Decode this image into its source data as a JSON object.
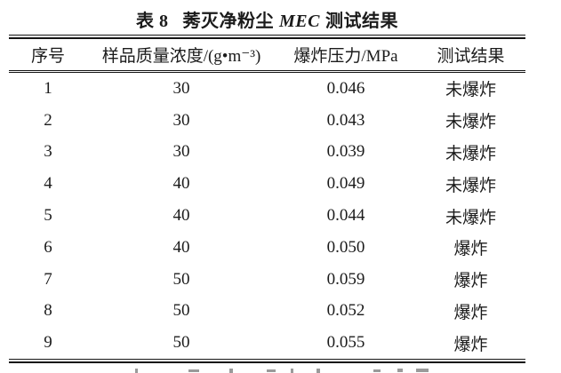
{
  "page": {
    "background": "#ffffff",
    "text_color": "#1b1b1b",
    "rule_color": "#141414"
  },
  "title": {
    "table_label": "表 8",
    "subject": "莠灭净粉尘",
    "abbrev": "MEC",
    "tail": "测试结果"
  },
  "table": {
    "columns": [
      "序号",
      "样品质量浓度/(g•m⁻³)",
      "爆炸压力/MPa",
      "测试结果"
    ],
    "rows": [
      [
        "1",
        "30",
        "0.046",
        "未爆炸"
      ],
      [
        "2",
        "30",
        "0.043",
        "未爆炸"
      ],
      [
        "3",
        "30",
        "0.039",
        "未爆炸"
      ],
      [
        "4",
        "40",
        "0.049",
        "未爆炸"
      ],
      [
        "5",
        "40",
        "0.044",
        "未爆炸"
      ],
      [
        "6",
        "40",
        "0.050",
        "爆炸"
      ],
      [
        "7",
        "50",
        "0.059",
        "爆炸"
      ],
      [
        "8",
        "50",
        "0.052",
        "爆炸"
      ],
      [
        "9",
        "50",
        "0.055",
        "爆炸"
      ]
    ]
  }
}
